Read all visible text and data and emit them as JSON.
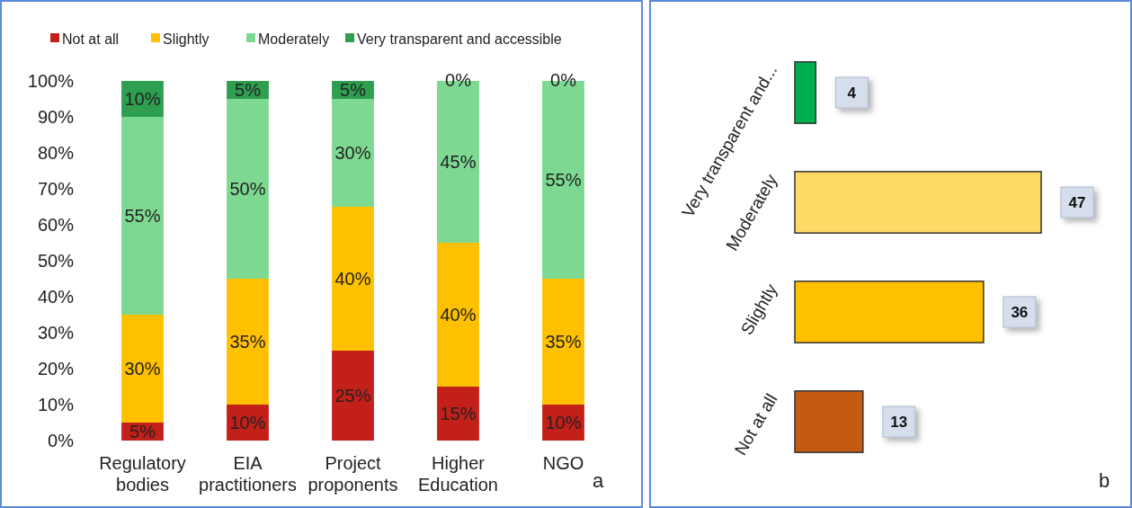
{
  "chart_data": [
    {
      "type": "bar",
      "stacked": true,
      "categories": [
        "Regulatory bodies",
        "EIA practitioners",
        "Project proponents",
        "Higher Education",
        "NGO"
      ],
      "series": [
        {
          "name": "Not at all",
          "color": "#c4201a",
          "values": [
            5,
            10,
            25,
            15,
            10
          ],
          "value_labels": [
            "5%",
            "10%",
            "25%",
            "15%",
            "10%"
          ]
        },
        {
          "name": "Slightly",
          "color": "#ffc000",
          "values": [
            30,
            35,
            40,
            40,
            35
          ],
          "value_labels": [
            "30%",
            "35%",
            "40%",
            "40%",
            "35%"
          ]
        },
        {
          "name": "Moderately",
          "color": "#7dd992",
          "values": [
            55,
            50,
            30,
            45,
            55
          ],
          "value_labels": [
            "55%",
            "50%",
            "30%",
            "45%",
            "55%"
          ]
        },
        {
          "name": "Very transparent and accessible",
          "color": "#2e9e4f",
          "values": [
            10,
            5,
            5,
            0,
            0
          ],
          "value_labels": [
            "10%",
            "5%",
            "5%",
            "0%",
            "0%"
          ]
        }
      ],
      "ylim": [
        0,
        100
      ],
      "yticks": [
        {
          "value": 0,
          "label": "0%"
        },
        {
          "value": 10,
          "label": "10%"
        },
        {
          "value": 20,
          "label": "20%"
        },
        {
          "value": 30,
          "label": "30%"
        },
        {
          "value": 40,
          "label": "40%"
        },
        {
          "value": 50,
          "label": "50%"
        },
        {
          "value": 60,
          "label": "60%"
        },
        {
          "value": 70,
          "label": "70%"
        },
        {
          "value": 80,
          "label": "80%"
        },
        {
          "value": 90,
          "label": "90%"
        },
        {
          "value": 100,
          "label": "100%"
        }
      ],
      "legend": "top",
      "annotations": [
        "a"
      ]
    },
    {
      "type": "bar",
      "orientation": "horizontal",
      "categories": [
        "Very transparent and...",
        "Moderately",
        "Slightly",
        "Not at all"
      ],
      "values": [
        4,
        47,
        36,
        13
      ],
      "colors": [
        "#00b050",
        "#ffd966",
        "#ffc000",
        "#c55a11"
      ],
      "data_labels": true,
      "annotations": [
        "b"
      ]
    }
  ]
}
